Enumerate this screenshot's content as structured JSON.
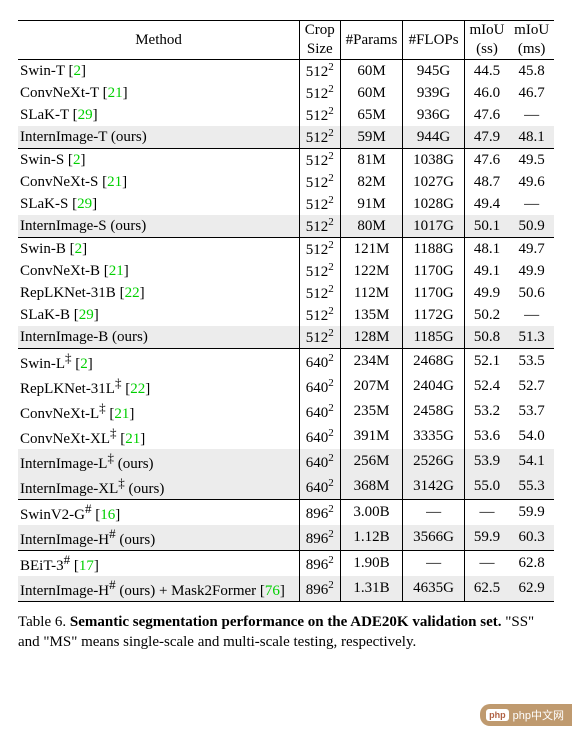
{
  "table": {
    "columns": [
      "Method",
      "Crop Size",
      "#Params",
      "#FLOPs",
      "mIoU (ss)",
      "mIoU (ms)"
    ],
    "header_top": [
      "Method",
      "Crop",
      "#Params",
      "#FLOPs",
      "mIoU",
      "mIoU"
    ],
    "header_bot": [
      "",
      "Size",
      "",
      "",
      "(ss)",
      "(ms)"
    ],
    "groups": [
      {
        "rows": [
          {
            "method": "Swin-T",
            "cite": "2",
            "crop": "512",
            "params": "60M",
            "flops": "945G",
            "ss": "44.5",
            "ms": "45.8"
          },
          {
            "method": "ConvNeXt-T",
            "cite": "21",
            "crop": "512",
            "params": "60M",
            "flops": "939G",
            "ss": "46.0",
            "ms": "46.7"
          },
          {
            "method": "SLaK-T",
            "cite": "29",
            "crop": "512",
            "params": "65M",
            "flops": "936G",
            "ss": "47.6",
            "ms": "—"
          },
          {
            "method": "InternImage-T (ours)",
            "crop": "512",
            "params": "59M",
            "flops": "944G",
            "ss": "47.9",
            "ms": "48.1",
            "hl": true
          }
        ]
      },
      {
        "rows": [
          {
            "method": "Swin-S",
            "cite": "2",
            "crop": "512",
            "params": "81M",
            "flops": "1038G",
            "ss": "47.6",
            "ms": "49.5"
          },
          {
            "method": "ConvNeXt-S",
            "cite": "21",
            "crop": "512",
            "params": "82M",
            "flops": "1027G",
            "ss": "48.7",
            "ms": "49.6"
          },
          {
            "method": "SLaK-S",
            "cite": "29",
            "crop": "512",
            "params": "91M",
            "flops": "1028G",
            "ss": "49.4",
            "ms": "—"
          },
          {
            "method": "InternImage-S (ours)",
            "crop": "512",
            "params": "80M",
            "flops": "1017G",
            "ss": "50.1",
            "ms": "50.9",
            "hl": true
          }
        ]
      },
      {
        "rows": [
          {
            "method": "Swin-B",
            "cite": "2",
            "crop": "512",
            "params": "121M",
            "flops": "1188G",
            "ss": "48.1",
            "ms": "49.7"
          },
          {
            "method": "ConvNeXt-B",
            "cite": "21",
            "crop": "512",
            "params": "122M",
            "flops": "1170G",
            "ss": "49.1",
            "ms": "49.9"
          },
          {
            "method": "RepLKNet-31B",
            "cite": "22",
            "crop": "512",
            "params": "112M",
            "flops": "1170G",
            "ss": "49.9",
            "ms": "50.6"
          },
          {
            "method": "SLaK-B",
            "cite": "29",
            "crop": "512",
            "params": "135M",
            "flops": "1172G",
            "ss": "50.2",
            "ms": "—"
          },
          {
            "method": "InternImage-B (ours)",
            "crop": "512",
            "params": "128M",
            "flops": "1185G",
            "ss": "50.8",
            "ms": "51.3",
            "hl": true
          }
        ]
      },
      {
        "rows": [
          {
            "method": "Swin-L",
            "sup": "‡",
            "cite": "2",
            "crop": "640",
            "params": "234M",
            "flops": "2468G",
            "ss": "52.1",
            "ms": "53.5"
          },
          {
            "method": "RepLKNet-31L",
            "sup": "‡",
            "cite": "22",
            "crop": "640",
            "params": "207M",
            "flops": "2404G",
            "ss": "52.4",
            "ms": "52.7"
          },
          {
            "method": "ConvNeXt-L",
            "sup": "‡",
            "cite": "21",
            "crop": "640",
            "params": "235M",
            "flops": "2458G",
            "ss": "53.2",
            "ms": "53.7"
          },
          {
            "method": "ConvNeXt-XL",
            "sup": "‡",
            "cite": "21",
            "crop": "640",
            "params": "391M",
            "flops": "3335G",
            "ss": "53.6",
            "ms": "54.0"
          },
          {
            "method": "InternImage-L",
            "sup": "‡",
            "suffix": " (ours)",
            "crop": "640",
            "params": "256M",
            "flops": "2526G",
            "ss": "53.9",
            "ms": "54.1",
            "hl": true
          },
          {
            "method": "InternImage-XL",
            "sup": "‡",
            "suffix": " (ours)",
            "crop": "640",
            "params": "368M",
            "flops": "3142G",
            "ss": "55.0",
            "ms": "55.3",
            "hl": true
          }
        ]
      },
      {
        "rows": [
          {
            "method": "SwinV2-G",
            "sup": "#",
            "cite": "16",
            "crop": "896",
            "params": "3.00B",
            "flops": "—",
            "ss": "—",
            "ms": "59.9"
          },
          {
            "method": "InternImage-H",
            "sup": "#",
            "suffix": " (ours)",
            "crop": "896",
            "params": "1.12B",
            "flops": "3566G",
            "ss": "59.9",
            "ms": "60.3",
            "hl": true
          }
        ]
      },
      {
        "rows": [
          {
            "method": "BEiT-3",
            "sup": "#",
            "cite": "17",
            "crop": "896",
            "params": "1.90B",
            "flops": "—",
            "ss": "—",
            "ms": "62.8"
          },
          {
            "method": "InternImage-H",
            "sup": "#",
            "suffix": " (ours) + Mask2Former ",
            "extra_cite": "76",
            "crop": "896",
            "params": "1.31B",
            "flops": "4635G",
            "ss": "62.5",
            "ms": "62.9",
            "hl": true
          }
        ]
      }
    ]
  },
  "caption": {
    "label": "Table 6.",
    "title": "Semantic segmentation performance on the ADE20K validation set.",
    "text": " \"SS\" and \"MS\" means single-scale and multi-scale testing, respectively."
  },
  "watermark": {
    "logo": "php",
    "text": "php中文网"
  },
  "colors": {
    "cite": "#00d000",
    "highlight": "#ececec",
    "border": "#000000",
    "background": "#ffffff"
  }
}
